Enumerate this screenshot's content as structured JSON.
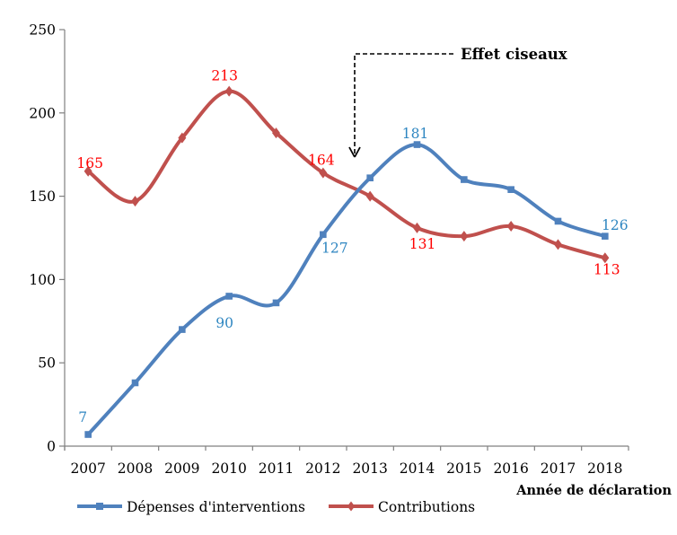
{
  "chart_data": {
    "type": "line",
    "title": "",
    "xlabel": "Année de déclaration",
    "ylabel": "",
    "ylim": [
      0,
      250
    ],
    "yticks": [
      0,
      50,
      100,
      150,
      200,
      250
    ],
    "grid": false,
    "smooth": true,
    "legend_position": "bottom",
    "axis_color": "#808080",
    "categories": [
      "2007",
      "2008",
      "2009",
      "2010",
      "2011",
      "2012",
      "2013",
      "2014",
      "2015",
      "2016",
      "2017",
      "2018"
    ],
    "series": [
      {
        "name": "Dépenses d'interventions",
        "color": "#4F81BD",
        "marker": "square",
        "label_color": "#2E86C1",
        "values": [
          7,
          38,
          70,
          90,
          86,
          127,
          161,
          181,
          160,
          154,
          135,
          126
        ],
        "data_labels": [
          {
            "i": 0,
            "text": "7",
            "dx": -6,
            "dy": -14
          },
          {
            "i": 3,
            "text": "90",
            "dx": -5,
            "dy": 35
          },
          {
            "i": 5,
            "text": "127",
            "dx": 13,
            "dy": 20
          },
          {
            "i": 7,
            "text": "181",
            "dx": -2,
            "dy": -7
          },
          {
            "i": 11,
            "text": "126",
            "dx": 11,
            "dy": -7
          }
        ]
      },
      {
        "name": "Contributions",
        "color": "#C0504D",
        "marker": "diamond",
        "label_color": "#FF0000",
        "values": [
          165,
          147,
          185,
          213,
          188,
          164,
          150,
          131,
          126,
          132,
          121,
          113
        ],
        "data_labels": [
          {
            "i": 0,
            "text": "165",
            "dx": 2,
            "dy": -4
          },
          {
            "i": 3,
            "text": "213",
            "dx": -5,
            "dy": -12
          },
          {
            "i": 5,
            "text": "164",
            "dx": -2,
            "dy": -9
          },
          {
            "i": 7,
            "text": "131",
            "dx": 6,
            "dy": 23
          },
          {
            "i": 11,
            "text": "113",
            "dx": 2,
            "dy": 18
          }
        ]
      }
    ],
    "annotation": {
      "text": "Effet ciseaux",
      "arrow_points_to": "crossing of the two curves near 2013"
    }
  }
}
